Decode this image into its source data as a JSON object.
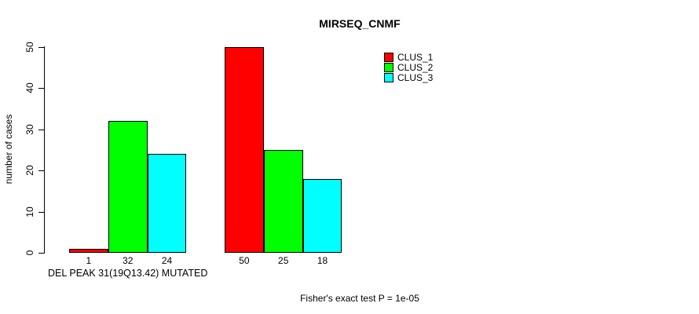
{
  "chart_data": {
    "type": "bar",
    "title": "MIRSEQ_CNMF",
    "ylabel": "number of cases",
    "xlabel": "",
    "footnote": "Fisher's exact test P = 1e-05",
    "ylim": [
      0,
      50
    ],
    "yticks": [
      0,
      10,
      20,
      30,
      40,
      50
    ],
    "grid": false,
    "legend_position": "top-right-inside",
    "bar_border_color": "#000000",
    "series": [
      {
        "name": "CLUS_1",
        "color": "#ff0000",
        "values": [
          1,
          50
        ]
      },
      {
        "name": "CLUS_2",
        "color": "#00ff00",
        "values": [
          32,
          25
        ]
      },
      {
        "name": "CLUS_3",
        "color": "#00ffff",
        "values": [
          24,
          18
        ]
      }
    ],
    "groups": [
      {
        "label": "DEL PEAK 31(19Q13.42) MUTATED",
        "bar_value_labels": [
          1,
          32,
          24
        ]
      },
      {
        "label": "",
        "bar_value_labels": [
          50,
          25,
          18
        ]
      }
    ],
    "legend": [
      {
        "label": "CLUS_1",
        "color": "#ff0000"
      },
      {
        "label": "CLUS_2",
        "color": "#00ff00"
      },
      {
        "label": "CLUS_3",
        "color": "#00ffff"
      }
    ]
  }
}
